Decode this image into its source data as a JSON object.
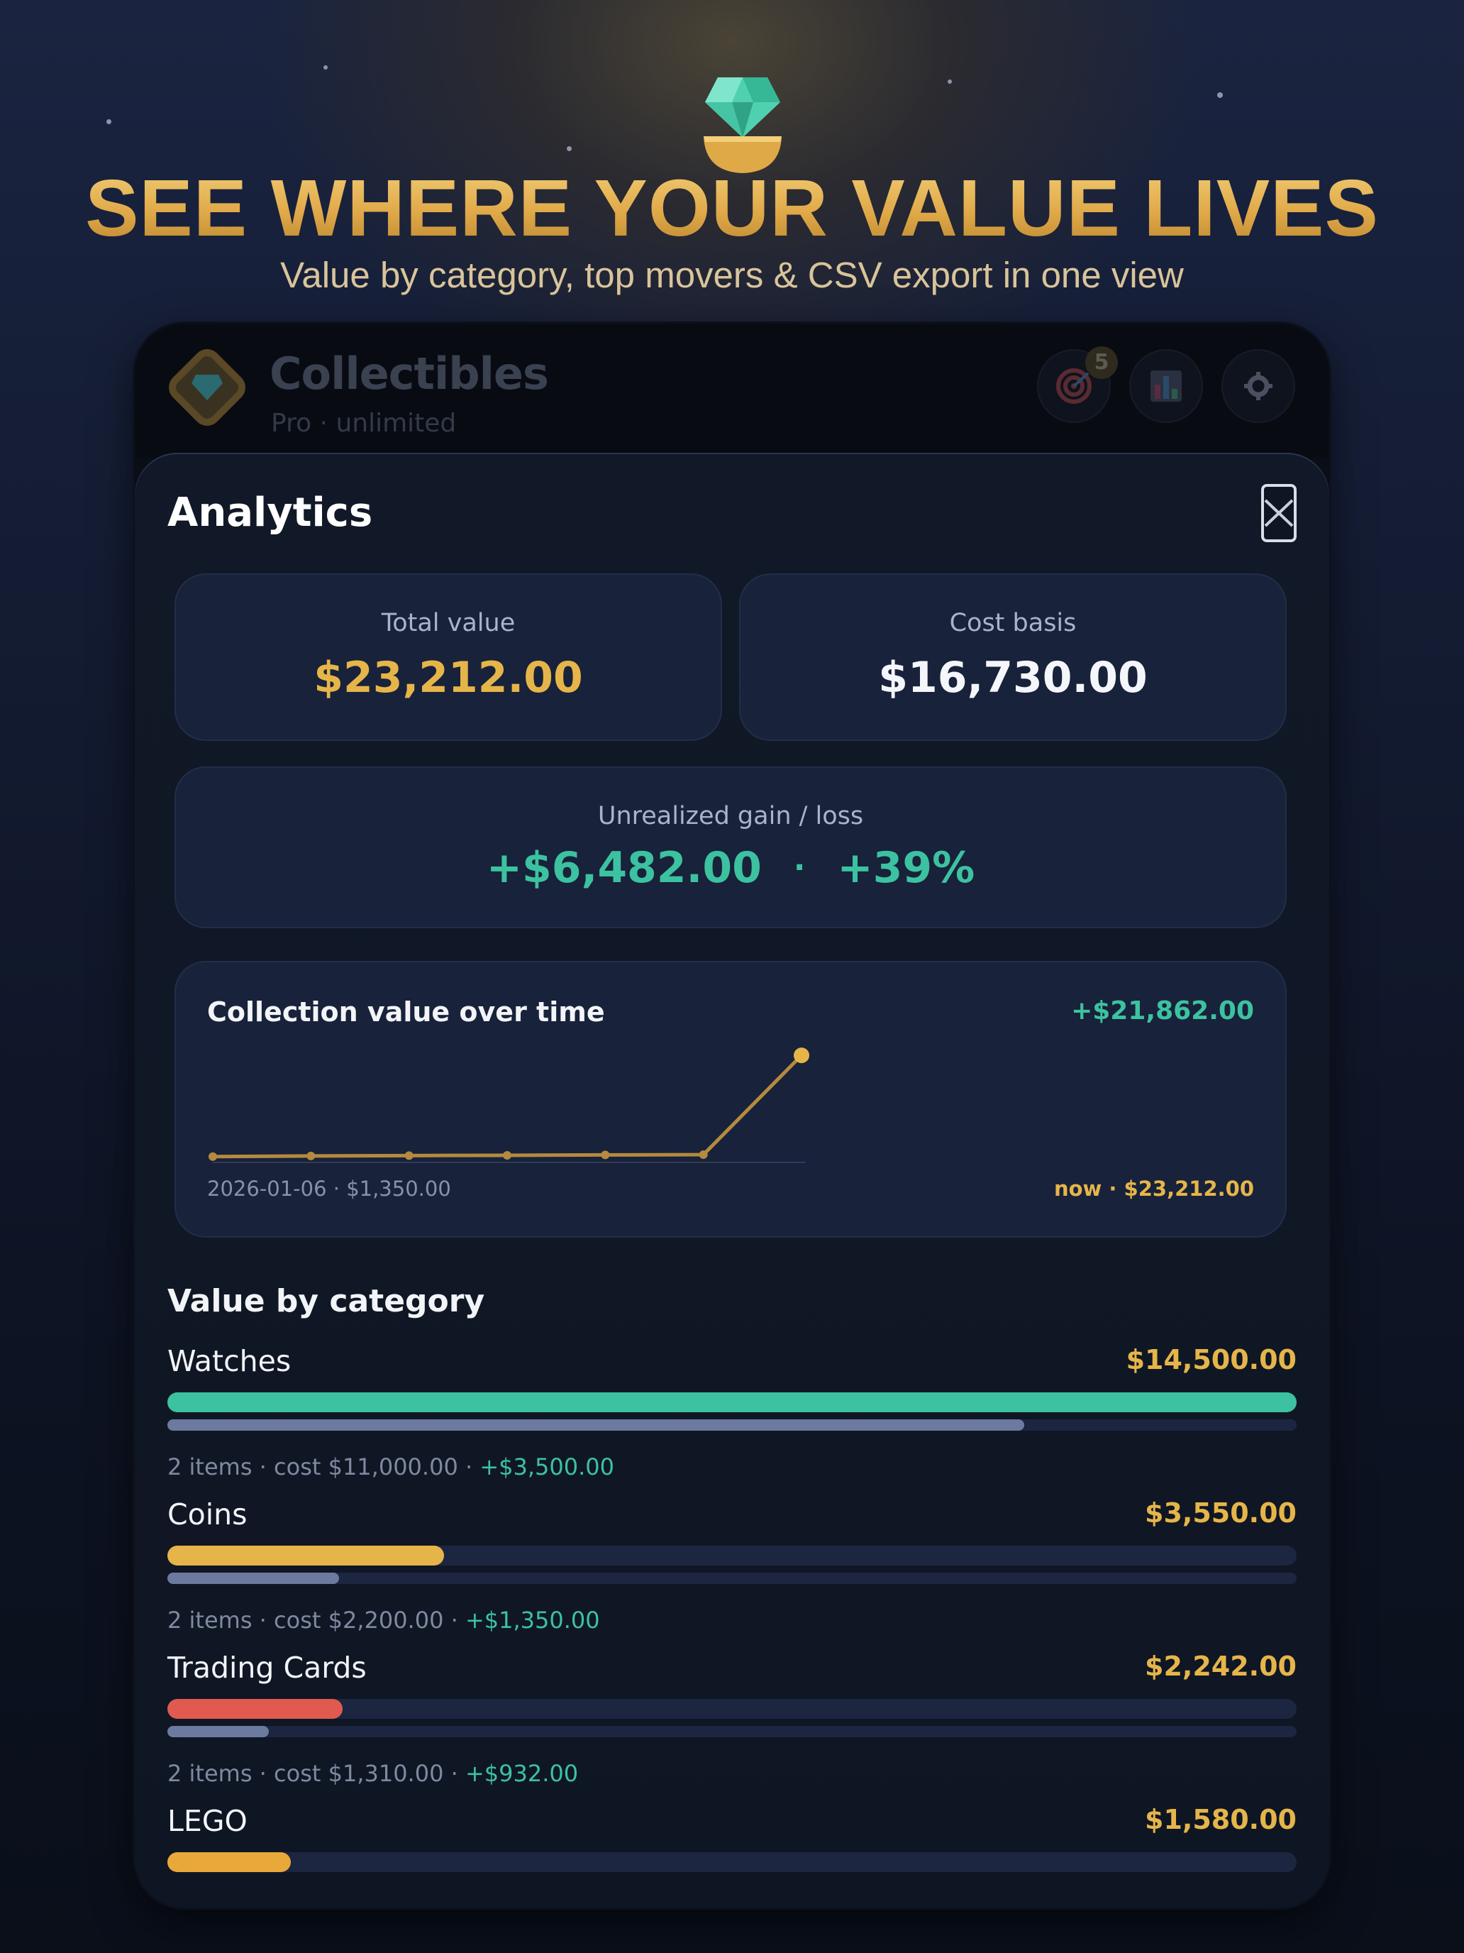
{
  "promo": {
    "headline": "SEE WHERE YOUR VALUE LIVES",
    "subline": "Value by category, top movers & CSV export in one view"
  },
  "app": {
    "title": "Collectibles",
    "subtitle": "Pro · unlimited",
    "goals_badge": "5",
    "icons": [
      "target-icon",
      "bar-chart-icon",
      "gear-icon"
    ]
  },
  "analytics": {
    "title": "Analytics",
    "total_value_label": "Total value",
    "total_value": "$23,212.00",
    "cost_basis_label": "Cost basis",
    "cost_basis": "$16,730.00",
    "gain_label": "Unrealized gain / loss",
    "gain_amount": "+$6,482.00",
    "gain_sep": "·",
    "gain_percent": "+39%",
    "chart_title": "Collection value over time",
    "chart_delta": "+$21,862.00",
    "chart_start": "2026-01-06 · $1,350.00",
    "chart_end": "now · $23,212.00",
    "section_title": "Value by category"
  },
  "colors": {
    "gold": "#e6b54a",
    "green": "#3cc2a0",
    "red": "#e05a4f",
    "cost_bar": "#6b7a9e"
  },
  "categories": [
    {
      "name": "Watches",
      "value": "$14,500.00",
      "items": "2 items · cost $11,000.00 · ",
      "gain": "+$3,500.00",
      "value_fraction": 1.0,
      "cost_fraction": 0.759,
      "color": "#3cc2a0"
    },
    {
      "name": "Coins",
      "value": "$3,550.00",
      "items": "2 items · cost $2,200.00 · ",
      "gain": "+$1,350.00",
      "value_fraction": 0.245,
      "cost_fraction": 0.152,
      "color": "#e6b54a"
    },
    {
      "name": "Trading Cards",
      "value": "$2,242.00",
      "items": "2 items · cost $1,310.00 · ",
      "gain": "+$932.00",
      "value_fraction": 0.155,
      "cost_fraction": 0.09,
      "color": "#e05a4f"
    },
    {
      "name": "LEGO",
      "value": "$1,580.00",
      "value_fraction": 0.109,
      "color": "#e8a83a"
    }
  ],
  "chart_data": {
    "type": "line",
    "x": [
      "2026-01-06",
      "",
      "",
      "",
      "",
      "",
      "now"
    ],
    "series": [
      {
        "values": [
          1350,
          1480,
          1560,
          1620,
          1700,
          1760,
          23212
        ]
      }
    ],
    "ylim": [
      1000,
      24000
    ],
    "grid": false
  }
}
